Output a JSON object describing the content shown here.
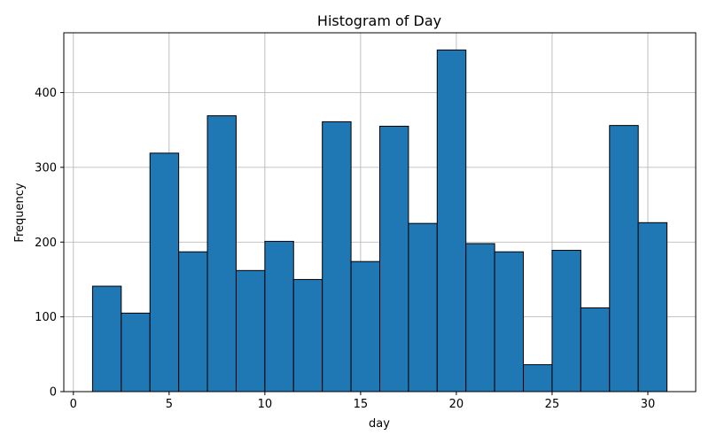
{
  "chart_data": {
    "type": "bar",
    "subtype": "histogram",
    "title": "Histogram of Day",
    "xlabel": "day",
    "ylabel": "Frequency",
    "xlim": [
      -0.5,
      32.5
    ],
    "ylim": [
      0,
      480
    ],
    "xticks": [
      0,
      5,
      10,
      15,
      20,
      25,
      30
    ],
    "yticks": [
      0,
      100,
      200,
      300,
      400
    ],
    "grid": true,
    "bar_color": "#1f77b4",
    "edge_color": "#000000",
    "bins": [
      {
        "x0": 1.0,
        "x1": 2.5,
        "value": 141
      },
      {
        "x0": 2.5,
        "x1": 4.0,
        "value": 105
      },
      {
        "x0": 4.0,
        "x1": 5.5,
        "value": 319
      },
      {
        "x0": 5.5,
        "x1": 7.0,
        "value": 187
      },
      {
        "x0": 7.0,
        "x1": 8.5,
        "value": 369
      },
      {
        "x0": 8.5,
        "x1": 10.0,
        "value": 162
      },
      {
        "x0": 10.0,
        "x1": 11.5,
        "value": 201
      },
      {
        "x0": 11.5,
        "x1": 13.0,
        "value": 150
      },
      {
        "x0": 13.0,
        "x1": 14.5,
        "value": 361
      },
      {
        "x0": 14.5,
        "x1": 16.0,
        "value": 174
      },
      {
        "x0": 16.0,
        "x1": 17.5,
        "value": 355
      },
      {
        "x0": 17.5,
        "x1": 19.0,
        "value": 225
      },
      {
        "x0": 19.0,
        "x1": 20.5,
        "value": 457
      },
      {
        "x0": 20.5,
        "x1": 22.0,
        "value": 198
      },
      {
        "x0": 22.0,
        "x1": 23.5,
        "value": 187
      },
      {
        "x0": 23.5,
        "x1": 25.0,
        "value": 36
      },
      {
        "x0": 25.0,
        "x1": 26.5,
        "value": 189
      },
      {
        "x0": 26.5,
        "x1": 28.0,
        "value": 112
      },
      {
        "x0": 28.0,
        "x1": 29.5,
        "value": 356
      },
      {
        "x0": 29.5,
        "x1": 31.0,
        "value": 226
      }
    ]
  }
}
